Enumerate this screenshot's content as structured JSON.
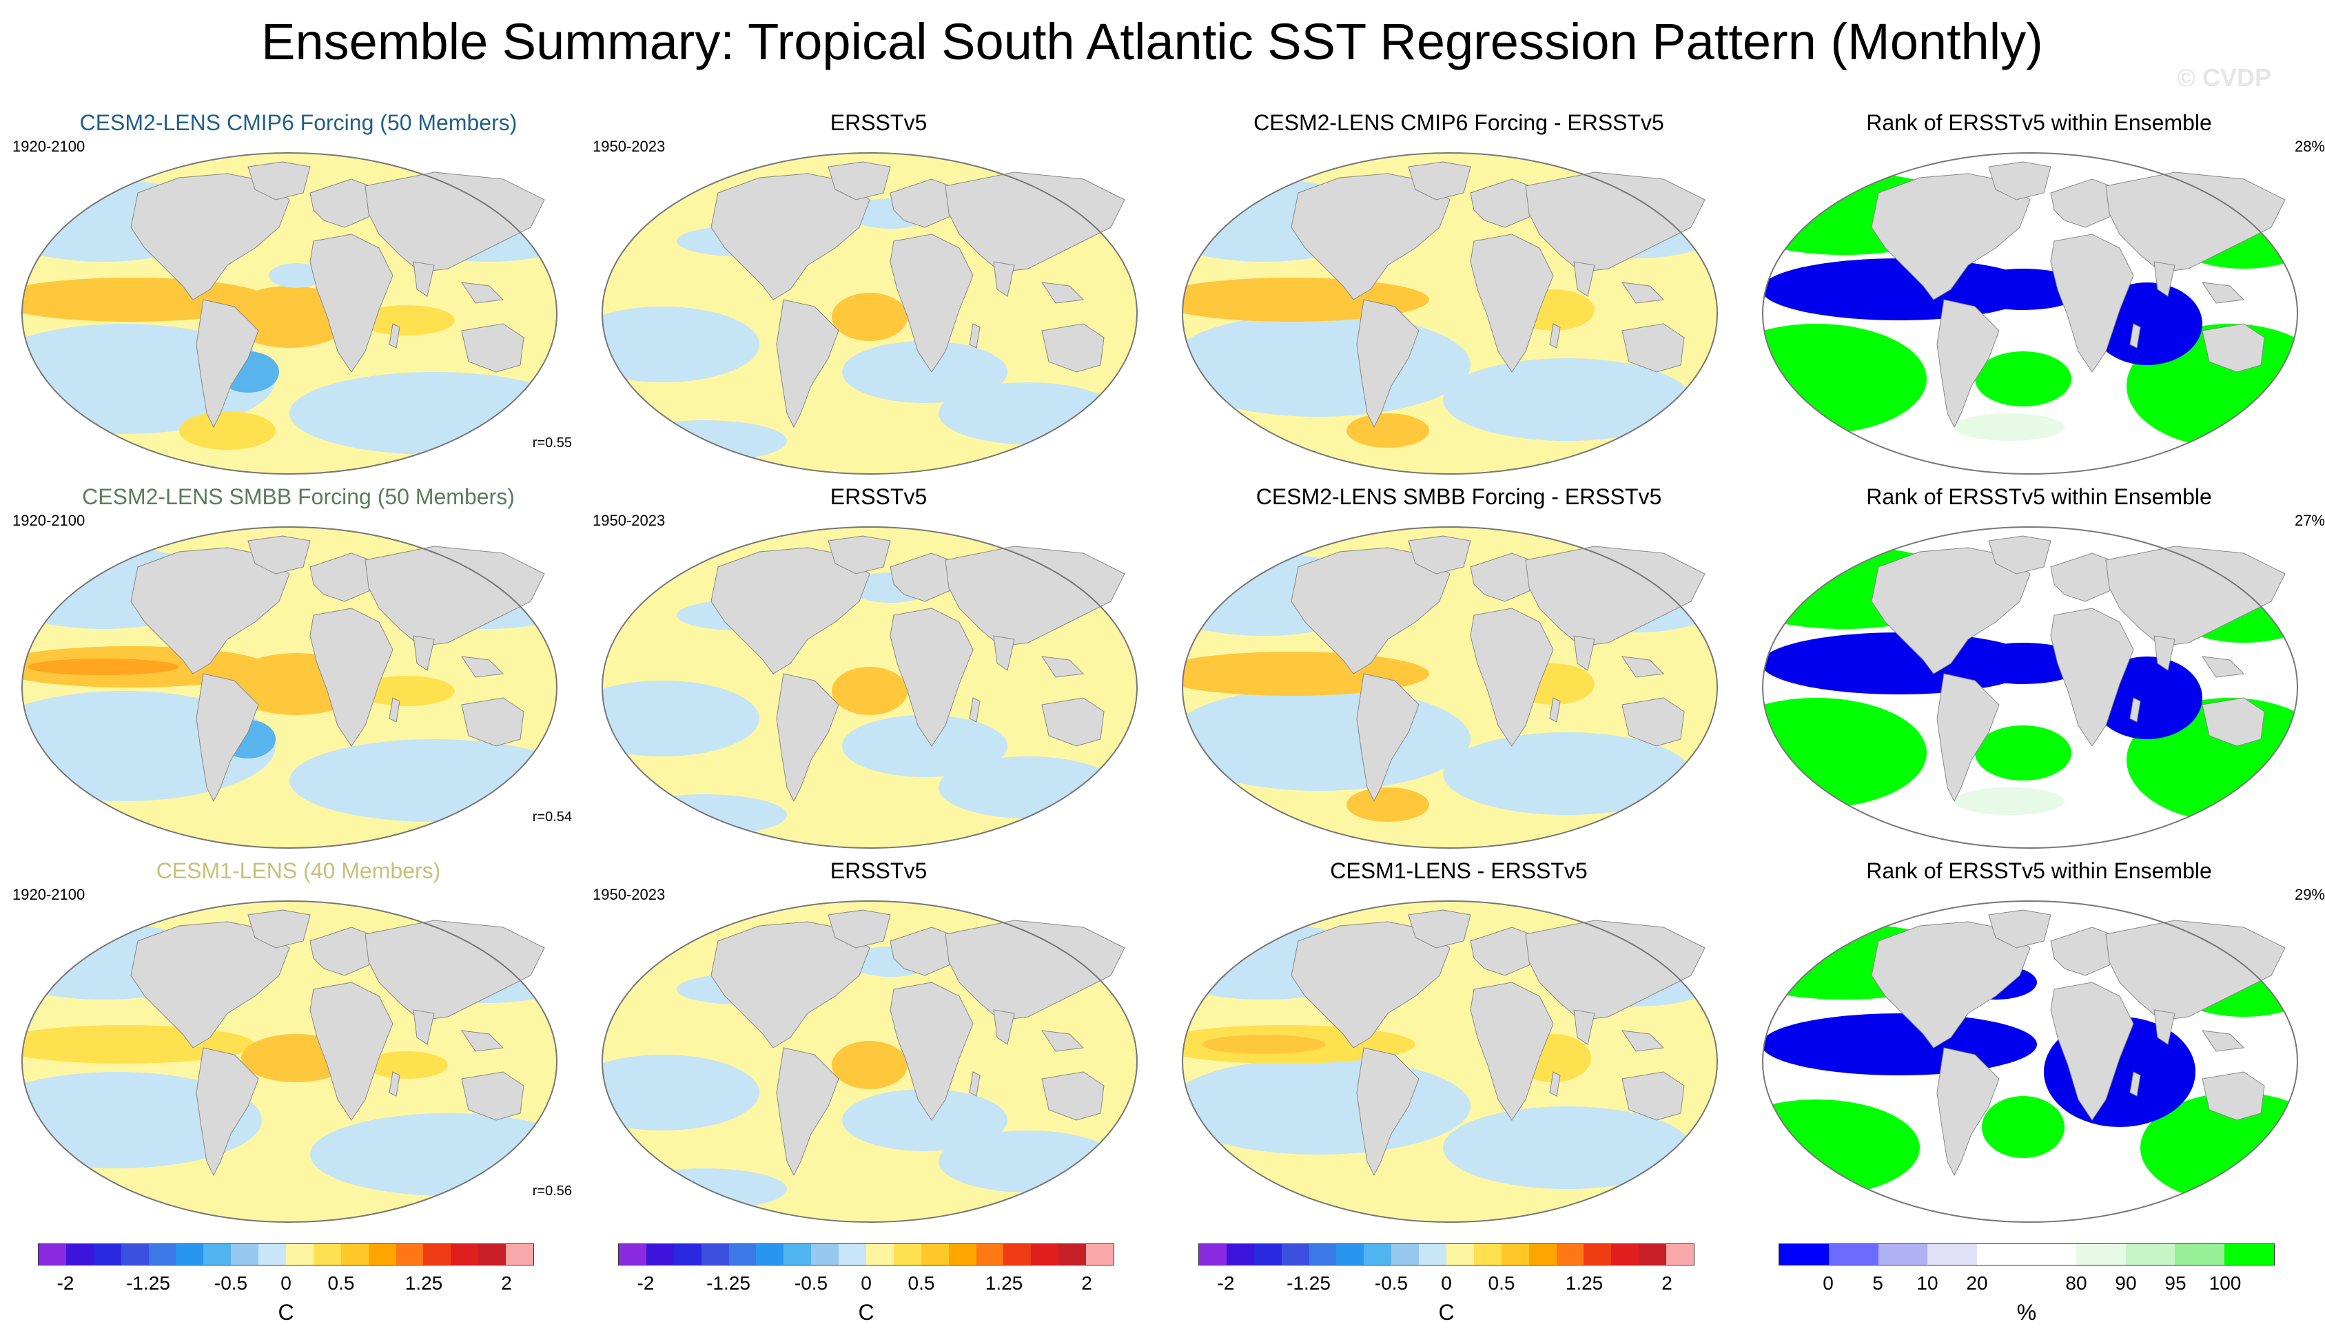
{
  "title": "Ensemble Summary: Tropical South Atlantic SST Regression Pattern (Monthly)",
  "watermark": "© CVDP",
  "colors": {
    "land": "#d9d9d9",
    "ocean_base": "#fdf7a3",
    "title_cmip6": "#1f5f8b",
    "title_smbb": "#5b7c5b",
    "title_cesm1": "#c8c07a"
  },
  "rows": [
    {
      "model": "CESM2-LENS CMIP6 Forcing (50 Members)",
      "model_color": "#1f5f8b",
      "model_years": "1920-2100",
      "corr": "r=0.55",
      "obs": "ERSSTv5",
      "obs_years": "1950-2023",
      "diff": "CESM2-LENS CMIP6 Forcing - ERSSTv5",
      "rank": "Rank of ERSSTv5 within Ensemble",
      "rank_pct": "28%"
    },
    {
      "model": "CESM2-LENS SMBB Forcing (50 Members)",
      "model_color": "#5b7c5b",
      "model_years": "1920-2100",
      "corr": "r=0.54",
      "obs": "ERSSTv5",
      "obs_years": "1950-2023",
      "diff": "CESM2-LENS SMBB Forcing - ERSSTv5",
      "rank": "Rank of ERSSTv5 within Ensemble",
      "rank_pct": "27%"
    },
    {
      "model": "CESM1-LENS (40 Members)",
      "model_color": "#c8c07a",
      "model_years": "1920-2100",
      "corr": "r=0.56",
      "obs": "ERSSTv5",
      "obs_years": "1950-2023",
      "diff": "CESM1-LENS - ERSSTv5",
      "rank": "Rank of ERSSTv5 within Ensemble",
      "rank_pct": "29%"
    }
  ],
  "colorbar_sst": {
    "unit": "C",
    "ticks": [
      "-2",
      "-1.25",
      "-0.5",
      "0",
      "0.5",
      "1.25",
      "2"
    ],
    "colors": [
      "#8a2be2",
      "#3c14dc",
      "#2828e0",
      "#3c50e0",
      "#3c78e6",
      "#2896f0",
      "#50b4f0",
      "#96c8f0",
      "#c8e6f8",
      "#fff5a0",
      "#ffe050",
      "#ffc828",
      "#ffa500",
      "#ff7814",
      "#f03c14",
      "#e01e1e",
      "#c81e28",
      "#f8a8a8"
    ]
  },
  "colorbar_rank": {
    "unit": "%",
    "ticks": [
      "0",
      "5",
      "10",
      "20",
      "80",
      "90",
      "95",
      "100"
    ],
    "colors": [
      "#0000ff",
      "#6b6bff",
      "#b0b0f5",
      "#e0e0f8",
      "#ffffff",
      "#ffffff",
      "#e6fae6",
      "#c8f5c8",
      "#96f096",
      "#00ff00"
    ]
  }
}
